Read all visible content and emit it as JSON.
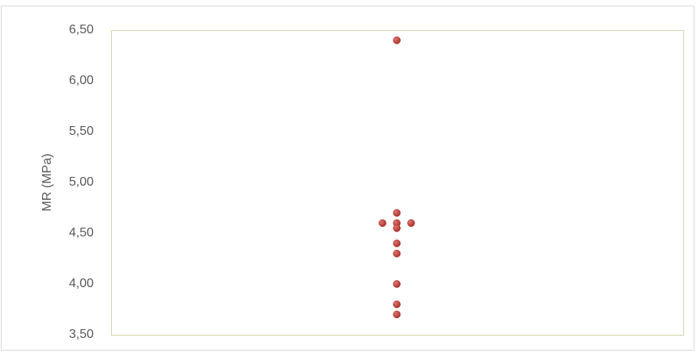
{
  "chart_data": {
    "type": "dot",
    "y_label": "MR (MPa)",
    "values": [
      6.4,
      4.7,
      4.6,
      4.6,
      4.6,
      4.55,
      4.4,
      4.3,
      4.0,
      3.8,
      3.7
    ],
    "color": "#c0413c",
    "ylim": [
      3.5,
      6.5
    ],
    "yticks": [
      {
        "value": 3.5,
        "label": "3,50"
      },
      {
        "value": 4.0,
        "label": "4,00"
      },
      {
        "value": 4.5,
        "label": "4,50"
      },
      {
        "value": 5.0,
        "label": "5,00"
      },
      {
        "value": 5.5,
        "label": "5,50"
      },
      {
        "value": 6.0,
        "label": "6,00"
      },
      {
        "value": 6.5,
        "label": "6,50"
      }
    ],
    "grid": false
  }
}
